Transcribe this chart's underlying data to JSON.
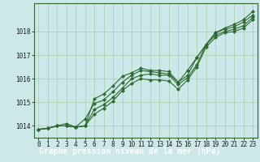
{
  "xlabel": "Graphe pression niveau de la mer (hPa)",
  "x": [
    0,
    1,
    2,
    3,
    4,
    5,
    6,
    7,
    8,
    9,
    10,
    11,
    12,
    13,
    14,
    15,
    16,
    17,
    18,
    19,
    20,
    21,
    22,
    23
  ],
  "series": [
    [
      1013.85,
      1013.9,
      1014.0,
      1014.0,
      1013.95,
      1014.0,
      1014.7,
      1014.9,
      1015.2,
      1015.6,
      1016.0,
      1016.15,
      1016.2,
      1016.15,
      1016.15,
      1015.75,
      1016.05,
      1016.6,
      1017.45,
      1017.85,
      1018.0,
      1018.1,
      1018.25,
      1018.6
    ],
    [
      1013.85,
      1013.9,
      1014.0,
      1014.1,
      1013.95,
      1014.3,
      1014.95,
      1015.1,
      1015.45,
      1015.85,
      1016.15,
      1016.35,
      1016.3,
      1016.25,
      1016.2,
      1015.85,
      1016.15,
      1016.9,
      1017.45,
      1017.95,
      1018.1,
      1018.2,
      1018.4,
      1018.7
    ],
    [
      1013.85,
      1013.9,
      1014.0,
      1014.0,
      1013.95,
      1014.0,
      1015.15,
      1015.35,
      1015.7,
      1016.1,
      1016.25,
      1016.45,
      1016.35,
      1016.35,
      1016.3,
      1015.85,
      1016.35,
      1016.9,
      1017.45,
      1017.95,
      1018.15,
      1018.3,
      1018.5,
      1018.85
    ],
    [
      1013.85,
      1013.9,
      1014.0,
      1014.0,
      1013.95,
      1014.0,
      1014.5,
      1014.75,
      1015.05,
      1015.5,
      1015.8,
      1016.0,
      1015.95,
      1015.95,
      1015.9,
      1015.55,
      1015.95,
      1016.5,
      1017.35,
      1017.75,
      1017.95,
      1018.0,
      1018.15,
      1018.5
    ]
  ],
  "line_color": "#2d6a2d",
  "marker_color": "#2d6a2d",
  "bg_color": "#cce8e8",
  "plot_bg": "#cce8e8",
  "grid_color": "#aaccaa",
  "label_bg": "#336633",
  "label_fg": "#ffffff",
  "ylim": [
    1013.5,
    1019.2
  ],
  "yticks": [
    1014,
    1015,
    1016,
    1017,
    1018
  ],
  "xticks": [
    0,
    1,
    2,
    3,
    4,
    5,
    6,
    7,
    8,
    9,
    10,
    11,
    12,
    13,
    14,
    15,
    16,
    17,
    18,
    19,
    20,
    21,
    22,
    23
  ],
  "title_fontsize": 7.0,
  "tick_fontsize": 5.5
}
